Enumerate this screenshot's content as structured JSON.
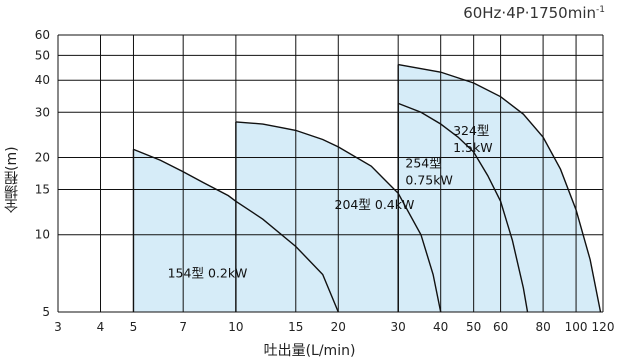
{
  "chart_data": {
    "type": "area",
    "title": "60Hz·4P·1750min",
    "title_superscript": "-1",
    "xlabel": "吐出量(L/min)",
    "ylabel": "全揚程(m)",
    "x_scale": "log",
    "y_scale": "log",
    "xlim": [
      3,
      120
    ],
    "ylim": [
      5,
      60
    ],
    "grid": true,
    "x_ticks": [
      3,
      4,
      5,
      7,
      10,
      15,
      20,
      30,
      40,
      50,
      60,
      80,
      100,
      120
    ],
    "x_tick_labels": [
      "3",
      "4",
      "5",
      "7",
      "10",
      "15",
      "20",
      "30",
      "40",
      "50",
      "60",
      "80",
      "100",
      "120"
    ],
    "y_ticks": [
      5,
      10,
      15,
      20,
      30,
      40,
      50,
      60
    ],
    "y_tick_labels": [
      "5",
      "10",
      "15",
      "20",
      "30",
      "40",
      "50",
      "60"
    ],
    "fill_color": "#d6ecf8",
    "line_color": "#111111",
    "grid_color": "#111111",
    "series": [
      {
        "label_lines": [
          "154型 0.2kW"
        ],
        "x_min": 5,
        "points": [
          [
            5,
            21.5
          ],
          [
            6,
            19.5
          ],
          [
            7,
            17.6
          ],
          [
            8,
            16.0
          ],
          [
            9.5,
            14.2
          ],
          [
            10,
            13.5
          ],
          [
            12,
            11.5
          ],
          [
            15,
            9.0
          ],
          [
            18,
            7.0
          ],
          [
            20,
            5.0
          ]
        ],
        "label_at": [
          6.3,
          6.8
        ]
      },
      {
        "label_lines": [
          "204型 0.4kW"
        ],
        "x_min": 10,
        "points": [
          [
            10,
            27.5
          ],
          [
            12,
            27.0
          ],
          [
            15,
            25.5
          ],
          [
            18,
            23.5
          ],
          [
            20,
            22.0
          ],
          [
            25,
            18.5
          ],
          [
            30,
            14.5
          ],
          [
            35,
            10.0
          ],
          [
            38,
            7.0
          ],
          [
            40,
            5.0
          ]
        ],
        "label_at": [
          19.5,
          12.6
        ]
      },
      {
        "label_lines": [
          "254型",
          "0.75kW"
        ],
        "x_min": 30,
        "points": [
          [
            30,
            32.5
          ],
          [
            35,
            30.0
          ],
          [
            40,
            27.0
          ],
          [
            45,
            24.0
          ],
          [
            50,
            21.0
          ],
          [
            55,
            17.0
          ],
          [
            60,
            13.5
          ],
          [
            65,
            9.5
          ],
          [
            70,
            6.2
          ],
          [
            72,
            5.0
          ]
        ],
        "label_at": [
          31.5,
          18.3
        ]
      },
      {
        "label_lines": [
          "324型",
          "1.5kW"
        ],
        "x_min": 30,
        "points": [
          [
            30,
            46.0
          ],
          [
            40,
            43.0
          ],
          [
            50,
            39.0
          ],
          [
            60,
            34.5
          ],
          [
            70,
            29.5
          ],
          [
            80,
            24.0
          ],
          [
            90,
            18.0
          ],
          [
            100,
            12.5
          ],
          [
            110,
            8.0
          ],
          [
            118,
            5.0
          ]
        ],
        "label_at": [
          43.5,
          24.5
        ]
      }
    ]
  }
}
